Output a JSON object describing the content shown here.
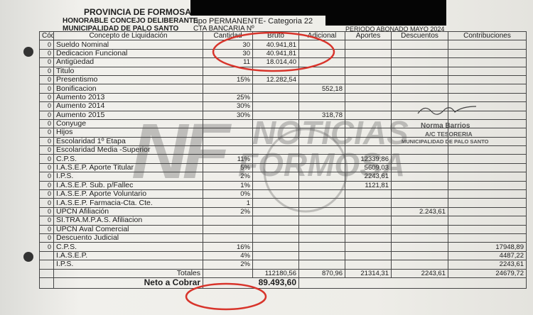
{
  "header": {
    "province": "PROVINCIA DE FORMOSA",
    "council": "HONORABLE CONCEJO DELIBERANTE",
    "municipality": "MUNICIPALIDAD DE PALO SANTO",
    "type": "Tipo PERMANENTE- Categoria 22",
    "account": "CTA BANCARIA Nº",
    "period": "PERIODO ABONADO MAYO 2024"
  },
  "table": {
    "columns": {
      "code": "Código",
      "concept": "Concepto de Liquidación",
      "qty": "Cantidad",
      "bruto": "Bruto",
      "adicional": "Adicional",
      "aportes": "Aportes",
      "descuentos": "Descuentos",
      "contribuciones": "Contribuciones"
    },
    "rows": [
      {
        "code": "0",
        "concept": "Sueldo Nominal",
        "qty": "30",
        "bruto": "40.941,81"
      },
      {
        "code": "0",
        "concept": "Dedicacion Funcional",
        "qty": "30",
        "bruto": "40.941,81"
      },
      {
        "code": "0",
        "concept": "Antigüedad",
        "qty": "11",
        "bruto": "18.014,40"
      },
      {
        "code": "0",
        "concept": "Titulo"
      },
      {
        "code": "0",
        "concept": "Presentismo",
        "qty": "15%",
        "bruto": "12.282,54"
      },
      {
        "code": "0",
        "concept": "Bonificacion",
        "adicional": "552,18"
      },
      {
        "code": "0",
        "concept": "Aumento 2013",
        "qty": "25%"
      },
      {
        "code": "0",
        "concept": "Aumento 2014",
        "qty": "30%"
      },
      {
        "code": "0",
        "concept": "Aumento 2015",
        "qty": "30%",
        "adicional": "318,78"
      },
      {
        "code": "0",
        "concept": "Conyuge"
      },
      {
        "code": "0",
        "concept": "Hijos"
      },
      {
        "code": "0",
        "concept": "Escolaridad 1º Etapa"
      },
      {
        "code": "0",
        "concept": "Escolaridad Media -Superior"
      },
      {
        "code": "0",
        "concept": "C.P.S.",
        "qty": "11%",
        "aportes": "12339,86"
      },
      {
        "code": "0",
        "concept": "I.A.S.E.P. Aporte Titular",
        "qty": "5%",
        "aportes": "5609,03"
      },
      {
        "code": "0",
        "concept": "I.P.S.",
        "qty": "2%",
        "aportes": "2243,61"
      },
      {
        "code": "0",
        "concept": "I.A.S.E.P. Sub. p/Fallec",
        "qty": "1%",
        "aportes": "1121,81"
      },
      {
        "code": "0",
        "concept": "I.A.S.E.P. Aporte Voluntario",
        "qty": "0%"
      },
      {
        "code": "0",
        "concept": "I.A.S.E.P. Farmacia-Cta. Cte.",
        "qty": "1"
      },
      {
        "code": "0",
        "concept": "UPCN Afiliación",
        "qty": "2%",
        "descuentos": "2.243,61"
      },
      {
        "code": "0",
        "concept": "SI.TRA.M.P.A.S. Afiliacion"
      },
      {
        "code": "0",
        "concept": "UPCN Aval Comercial"
      },
      {
        "code": "0",
        "concept": "Descuento Judicial"
      },
      {
        "code": "0",
        "concept": "C.P.S.",
        "qty": "16%",
        "contribuciones": "17948,89"
      },
      {
        "concept": "I.A.S.E.P.",
        "qty": "4%",
        "contribuciones": "4487,22"
      },
      {
        "concept": "I.P.S.",
        "qty": "2%",
        "contribuciones": "2243,61"
      }
    ],
    "totals": {
      "label": "Totales",
      "bruto": "112180,56",
      "adicional": "870,96",
      "aportes": "21314,31",
      "descuentos": "2243,61",
      "contribuciones": "24679,72"
    },
    "net": {
      "label": "Neto a Cobrar",
      "value": "89.493,60"
    }
  },
  "stamp": {
    "name": "Norma Barrios",
    "role": "A/C TESORERIA",
    "entity": "MUNICIPALIDAD DE PALO SANTO"
  },
  "watermark": {
    "logo": "NF",
    "line1": "NOTICIAS",
    "line2": "FORMOSA"
  }
}
